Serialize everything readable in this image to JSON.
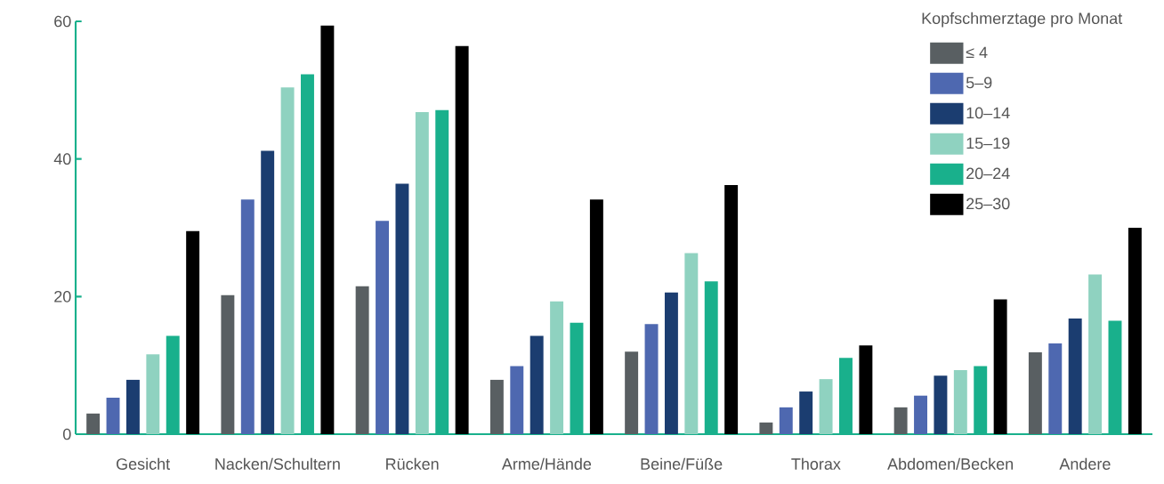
{
  "chart_data": {
    "type": "bar",
    "categories": [
      "Gesicht",
      "Nacken/Schultern",
      "Rücken",
      "Arme/Hände",
      "Beine/Füße",
      "Thorax",
      "Abdomen/Becken",
      "Andere"
    ],
    "legend_title": "Kopfschmerztage pro Monat",
    "series": [
      {
        "name": "≤ 4",
        "color": "#595f62",
        "values": [
          3.0,
          20.2,
          21.5,
          7.9,
          12.0,
          1.7,
          3.9,
          11.9
        ]
      },
      {
        "name": "5–9",
        "color": "#4e68b0",
        "values": [
          5.3,
          34.1,
          31.0,
          9.9,
          16.0,
          3.9,
          5.6,
          13.2
        ]
      },
      {
        "name": "10–14",
        "color": "#1b3d70",
        "values": [
          7.9,
          41.2,
          36.4,
          14.3,
          20.6,
          6.2,
          8.5,
          16.8
        ]
      },
      {
        "name": "15–19",
        "color": "#8fd2c0",
        "values": [
          11.6,
          50.4,
          46.8,
          19.3,
          26.3,
          8.0,
          9.3,
          23.2
        ]
      },
      {
        "name": "20–24",
        "color": "#19b08c",
        "values": [
          14.3,
          52.3,
          47.1,
          16.2,
          22.2,
          11.1,
          9.9,
          16.5
        ]
      },
      {
        "name": "25–30",
        "color": "#000000",
        "values": [
          29.5,
          59.4,
          56.4,
          34.1,
          36.2,
          12.9,
          19.6,
          30.0
        ]
      }
    ],
    "ylim": [
      0,
      60
    ],
    "yticks": [
      0,
      20,
      40,
      60
    ],
    "legend": "top right"
  }
}
